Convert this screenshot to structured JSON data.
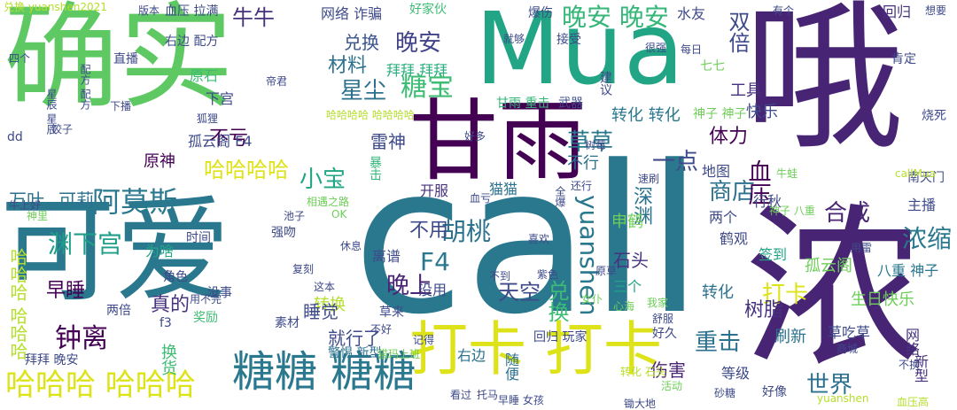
{
  "colors": {
    "background": "#ffffff",
    "palette": [
      "#440154",
      "#482878",
      "#3e4989",
      "#31688e",
      "#26828e",
      "#1f9e89",
      "#35b779",
      "#6ece58",
      "#b5de2b",
      "#fde725"
    ]
  },
  "words": [
    {
      "text": "确实",
      "color": "#5ec962",
      "vertical": false
    },
    {
      "text": "Mua",
      "color": "#21a585",
      "vertical": false
    },
    {
      "text": "call",
      "color": "#2a788e",
      "vertical": false
    },
    {
      "text": "可爱",
      "color": "#2a788e",
      "vertical": false
    },
    {
      "text": "甘雨",
      "color": "#440154",
      "vertical": false
    },
    {
      "text": "哦",
      "color": "#482475",
      "vertical": false
    },
    {
      "text": "浓",
      "color": "#482475",
      "vertical": false
    },
    {
      "text": "打卡 打卡",
      "color": "#dde318",
      "vertical": false
    },
    {
      "text": "糖糖 糖糖",
      "color": "#2a788e",
      "vertical": false
    },
    {
      "text": "哈哈哈 哈哈哈",
      "color": "#dde318",
      "vertical": false
    },
    {
      "text": "晚安 晚安",
      "color": "#35b779",
      "vertical": false
    },
    {
      "text": "晚安",
      "color": "#404387",
      "vertical": false
    },
    {
      "text": "双倍",
      "color": "#3e4a89",
      "vertical": true
    },
    {
      "text": "糖宝",
      "color": "#3dbc74",
      "vertical": false
    },
    {
      "text": "牛牛",
      "color": "#46327e",
      "vertical": false
    },
    {
      "text": "网络 诈骗",
      "color": "#3e4a89",
      "vertical": false
    },
    {
      "text": "兑换",
      "color": "#39558c",
      "vertical": false
    },
    {
      "text": "材料",
      "color": "#2c728e",
      "vertical": false
    },
    {
      "text": "星尘",
      "color": "#2c728e",
      "vertical": false
    },
    {
      "text": "拜拜 拜拜",
      "color": "#29af7f",
      "vertical": false
    },
    {
      "text": "水友",
      "color": "#3e4a89",
      "vertical": false
    },
    {
      "text": "阿莫斯",
      "color": "#2a788e",
      "vertical": false
    },
    {
      "text": "哈哈哈哈",
      "color": "#dde318",
      "vertical": false
    },
    {
      "text": "小宝",
      "color": "#21a585",
      "vertical": false
    },
    {
      "text": "可莉",
      "color": "#2c728e",
      "vertical": false
    },
    {
      "text": "万叶",
      "color": "#2c728e",
      "vertical": false
    },
    {
      "text": "渊下宫",
      "color": "#1f9e89",
      "vertical": false
    },
    {
      "text": "体力",
      "color": "#440154",
      "vertical": false
    },
    {
      "text": "商店",
      "color": "#2c728e",
      "vertical": false
    },
    {
      "text": "合成",
      "color": "#482475",
      "vertical": false
    },
    {
      "text": "浓缩",
      "color": "#2a788e",
      "vertical": false
    },
    {
      "text": "血压",
      "color": "#440154",
      "vertical": true
    },
    {
      "text": "胡桃",
      "color": "#2c728e",
      "vertical": false
    },
    {
      "text": "不用",
      "color": "#3e4a89",
      "vertical": false
    },
    {
      "text": "F4",
      "color": "#2a788e",
      "vertical": false
    },
    {
      "text": "晚上",
      "color": "#482475",
      "vertical": false
    },
    {
      "text": "钟离",
      "color": "#440154",
      "vertical": false
    },
    {
      "text": "早睡",
      "color": "#440154",
      "vertical": false
    },
    {
      "text": "打卡",
      "color": "#dde318",
      "vertical": false
    },
    {
      "text": "重击",
      "color": "#2c728e",
      "vertical": false
    },
    {
      "text": "世界",
      "color": "#2c728e",
      "vertical": false
    },
    {
      "text": "工具",
      "color": "#46327e",
      "vertical": false
    },
    {
      "text": "转化 转化",
      "color": "#2a788e",
      "vertical": false
    },
    {
      "text": "草草",
      "color": "#2a788e",
      "vertical": false
    },
    {
      "text": "一点",
      "color": "#3e4a89",
      "vertical": false
    },
    {
      "text": "深渊",
      "color": "#2c728e",
      "vertical": true
    },
    {
      "text": "石头",
      "color": "#46327e",
      "vertical": false
    },
    {
      "text": "天空",
      "color": "#3e4a89",
      "vertical": false
    },
    {
      "text": "兑换",
      "color": "#3dbc74",
      "vertical": true
    },
    {
      "text": "yuanshen",
      "color": "#2a788e",
      "vertical": true
    },
    {
      "text": "哈哈哈 哈哈哈",
      "color": "#b5de2b",
      "vertical": true
    },
    {
      "text": "转换",
      "color": "#b5de2b",
      "vertical": false
    },
    {
      "text": "就行了",
      "color": "#3e4a89",
      "vertical": false
    },
    {
      "text": "睡觉",
      "color": "#3e4a89",
      "vertical": false
    },
    {
      "text": "真的",
      "color": "#46327e",
      "vertical": false
    },
    {
      "text": "伤害",
      "color": "#482475",
      "vertical": false
    },
    {
      "text": "树脂",
      "color": "#46327e",
      "vertical": false
    },
    {
      "text": "孤云阁",
      "color": "#6ece58",
      "vertical": false
    },
    {
      "text": "生日快乐",
      "color": "#6ece58",
      "vertical": false
    },
    {
      "text": "八重 神子",
      "color": "#2a788e",
      "vertical": false
    },
    {
      "text": "刷新",
      "color": "#2c728e",
      "vertical": false
    },
    {
      "text": "转化",
      "color": "#2c728e",
      "vertical": false
    },
    {
      "text": "没用",
      "color": "#3e4a89",
      "vertical": false
    },
    {
      "text": "三个",
      "color": "#21a585",
      "vertical": false
    },
    {
      "text": "雷神",
      "color": "#3e4a89",
      "vertical": false
    },
    {
      "text": "不亏",
      "color": "#440154",
      "vertical": false
    },
    {
      "text": "原神",
      "color": "#440154",
      "vertical": false
    },
    {
      "text": "孤云阁 F4",
      "color": "#3e4a89",
      "vertical": false
    },
    {
      "text": "原石",
      "color": "#3dbc74",
      "vertical": false
    },
    {
      "text": "下宫",
      "color": "#3e4a89",
      "vertical": false
    },
    {
      "text": "右边 配方",
      "color": "#3e4a89",
      "vertical": false
    },
    {
      "text": "直播",
      "color": "#3e4a89",
      "vertical": false
    },
    {
      "text": "回归",
      "color": "#46327e",
      "vertical": false
    },
    {
      "text": "快乐",
      "color": "#3e4a89",
      "vertical": false
    },
    {
      "text": "不行",
      "color": "#2c728e",
      "vertical": false
    },
    {
      "text": "猫猫",
      "color": "#2c728e",
      "vertical": false
    },
    {
      "text": "开服",
      "color": "#46327e",
      "vertical": false
    },
    {
      "text": "地图",
      "color": "#3e4a89",
      "vertical": false
    },
    {
      "text": "行秋",
      "color": "#3e4a89",
      "vertical": false
    },
    {
      "text": "两个",
      "color": "#3e4a89",
      "vertical": false
    },
    {
      "text": "鹤观",
      "color": "#3e4a89",
      "vertical": false
    },
    {
      "text": "签到",
      "color": "#21a585",
      "vertical": false
    },
    {
      "text": "主播",
      "color": "#3e4a89",
      "vertical": false
    },
    {
      "text": "南天门",
      "color": "#3e4a89",
      "vertical": false
    },
    {
      "text": "申鹤",
      "color": "#6ece58",
      "vertical": false
    },
    {
      "text": "离谱",
      "color": "#3e4a89",
      "vertical": false
    },
    {
      "text": "为啥",
      "color": "#21a585",
      "vertical": false
    },
    {
      "text": "时间",
      "color": "#3e4a89",
      "vertical": false
    },
    {
      "text": "角色",
      "color": "#3e4a89",
      "vertical": false
    },
    {
      "text": "没事",
      "color": "#3e4a89",
      "vertical": false
    },
    {
      "text": "两倍",
      "color": "#3e4a89",
      "vertical": false
    },
    {
      "text": "奖励",
      "color": "#3dbc74",
      "vertical": false
    },
    {
      "text": "素材",
      "color": "#3e4a89",
      "vertical": false
    },
    {
      "text": "警惕 新型",
      "color": "#2c728e",
      "vertical": false
    },
    {
      "text": "右边",
      "color": "#2c728e",
      "vertical": false
    },
    {
      "text": "随便",
      "color": "#2c728e",
      "vertical": true
    },
    {
      "text": "拜拜 晚安",
      "color": "#3e4a89",
      "vertical": false
    },
    {
      "text": "换货",
      "color": "#3dbc74",
      "vertical": true
    },
    {
      "text": "好久",
      "color": "#3e4a89",
      "vertical": false
    },
    {
      "text": "草吃草",
      "color": "#3e4a89",
      "vertical": false
    },
    {
      "text": "网络",
      "color": "#46327e",
      "vertical": true
    },
    {
      "text": "新型",
      "color": "#46327e",
      "vertical": true
    },
    {
      "text": "等级",
      "color": "#3e4a89",
      "vertical": false
    },
    {
      "text": "好像",
      "color": "#3e4a89",
      "vertical": false
    },
    {
      "text": "回归 玩家",
      "color": "#3e4a89",
      "vertical": false
    },
    {
      "text": "暴击",
      "color": "#35b779",
      "vertical": true
    },
    {
      "text": "甘雨 重击",
      "color": "#35b779",
      "vertical": false
    },
    {
      "text": "武器",
      "color": "#3e4a89",
      "vertical": false
    },
    {
      "text": "建议",
      "color": "#3e4a89",
      "vertical": true
    },
    {
      "text": "爆伤",
      "color": "#3e4a89",
      "vertical": false
    },
    {
      "text": "接受",
      "color": "#3e4a89",
      "vertical": false
    },
    {
      "text": "好家伙",
      "color": "#3dbc74",
      "vertical": false
    },
    {
      "text": "肯定",
      "color": "#3e4a89",
      "vertical": false
    },
    {
      "text": "烧死",
      "color": "#3e4a89",
      "vertical": false
    },
    {
      "text": "草来",
      "color": "#3e4a89",
      "vertical": false
    },
    {
      "text": "强吻",
      "color": "#3e4a89",
      "vertical": false
    },
    {
      "text": "f3",
      "color": "#3e4a89",
      "vertical": false
    },
    {
      "text": "dd",
      "color": "#3e4a89",
      "vertical": false
    },
    {
      "text": "下播",
      "color": "#3e4a89",
      "vertical": false
    },
    {
      "text": "血压 拉满",
      "color": "#3e4a89",
      "vertical": false
    },
    {
      "text": "七七",
      "color": "#6ece58",
      "vertical": false
    },
    {
      "text": "神子 神子",
      "color": "#6ece58",
      "vertical": false
    },
    {
      "text": "有个",
      "color": "#3e4a89",
      "vertical": false
    },
    {
      "text": "每日",
      "color": "#3e4a89",
      "vertical": false
    },
    {
      "text": "想要",
      "color": "#3e4a89",
      "vertical": false
    },
    {
      "text": "版本",
      "color": "#3e4a89",
      "vertical": false
    },
    {
      "text": "就够",
      "color": "#3e4a89",
      "vertical": false
    },
    {
      "text": "很强",
      "color": "#3e4a89",
      "vertical": false
    },
    {
      "text": "狐狸",
      "color": "#3e4a89",
      "vertical": false
    },
    {
      "text": "帝君",
      "color": "#3e4a89",
      "vertical": false
    },
    {
      "text": "哈哈哈哈 哈哈哈哈",
      "color": "#b5de2b",
      "vertical": false
    },
    {
      "text": "兑换 yuanshen2021",
      "color": "#b5de2b",
      "vertical": false
    },
    {
      "text": "callMua",
      "color": "#b5de2b",
      "vertical": false
    },
    {
      "text": "yuanshen",
      "color": "#b5de2b",
      "vertical": false
    },
    {
      "text": "转化 石头",
      "color": "#b5de2b",
      "vertical": false
    },
    {
      "text": "早睡 女孩",
      "color": "#3e4a89",
      "vertical": false
    },
    {
      "text": "砂糖",
      "color": "#3e4a89",
      "vertical": false
    },
    {
      "text": "锄大地",
      "color": "#3e4a89",
      "vertical": false
    },
    {
      "text": "配方 配方",
      "color": "#3e4a89",
      "vertical": true
    },
    {
      "text": "星辰 星辰",
      "color": "#3e4a89",
      "vertical": true
    },
    {
      "text": "神子 八重",
      "color": "#6ece58",
      "vertical": false
    },
    {
      "text": "牛蛙",
      "color": "#6ece58",
      "vertical": false
    },
    {
      "text": "速刷",
      "color": "#3e4a89",
      "vertical": false
    },
    {
      "text": "还行",
      "color": "#3e4a89",
      "vertical": false
    },
    {
      "text": "全爆",
      "color": "#3e4a89",
      "vertical": true
    },
    {
      "text": "休息",
      "color": "#3e4a89",
      "vertical": false
    },
    {
      "text": "复刻",
      "color": "#3e4a89",
      "vertical": false
    },
    {
      "text": "记得",
      "color": "#3e4a89",
      "vertical": false
    },
    {
      "text": "心海",
      "color": "#6ece58",
      "vertical": false
    },
    {
      "text": "舒服",
      "color": "#3e4a89",
      "vertical": false
    },
    {
      "text": "用不完",
      "color": "#3e4a89",
      "vertical": false
    },
    {
      "text": "猫玛上班",
      "color": "#6ece58",
      "vertical": false
    },
    {
      "text": "四个",
      "color": "#3e4a89",
      "vertical": false
    },
    {
      "text": "饺子",
      "color": "#3e4a89",
      "vertical": false
    },
    {
      "text": "池子",
      "color": "#3e4a89",
      "vertical": false
    },
    {
      "text": "牛上好",
      "color": "#3e4a89",
      "vertical": false
    },
    {
      "text": "神里",
      "color": "#6ece58",
      "vertical": false
    },
    {
      "text": "OK",
      "color": "#6ece58",
      "vertical": false
    },
    {
      "text": "相遇之路",
      "color": "#6ece58",
      "vertical": false
    },
    {
      "text": "好多",
      "color": "#3e4a89",
      "vertical": false
    },
    {
      "text": "血亏",
      "color": "#3e4a89",
      "vertical": false
    },
    {
      "text": "树莓",
      "color": "#3e4a89",
      "vertical": false
    },
    {
      "text": "喜欢",
      "color": "#3e4a89",
      "vertical": false
    },
    {
      "text": "原草",
      "color": "#3e4a89",
      "vertical": false
    },
    {
      "text": "紫色",
      "color": "#3e4a89",
      "vertical": false
    },
    {
      "text": "不到",
      "color": "#3e4a89",
      "vertical": false
    },
    {
      "text": "女仆",
      "color": "#6ece58",
      "vertical": false
    },
    {
      "text": "这本",
      "color": "#3e4a89",
      "vertical": false
    },
    {
      "text": "不好",
      "color": "#3e4a89",
      "vertical": false
    },
    {
      "text": "我家",
      "color": "#6ece58",
      "vertical": false
    },
    {
      "text": "用雷",
      "color": "#3e4a89",
      "vertical": false
    },
    {
      "text": "商城",
      "color": "#3e4a89",
      "vertical": false
    },
    {
      "text": "不换",
      "color": "#3e4a89",
      "vertical": false
    },
    {
      "text": "活动",
      "color": "#6ece58",
      "vertical": false
    },
    {
      "text": "血压高",
      "color": "#b5de2b",
      "vertical": false
    },
    {
      "text": "托马",
      "color": "#3e4a89",
      "vertical": false
    },
    {
      "text": "看过",
      "color": "#3e4a89",
      "vertical": false
    }
  ]
}
